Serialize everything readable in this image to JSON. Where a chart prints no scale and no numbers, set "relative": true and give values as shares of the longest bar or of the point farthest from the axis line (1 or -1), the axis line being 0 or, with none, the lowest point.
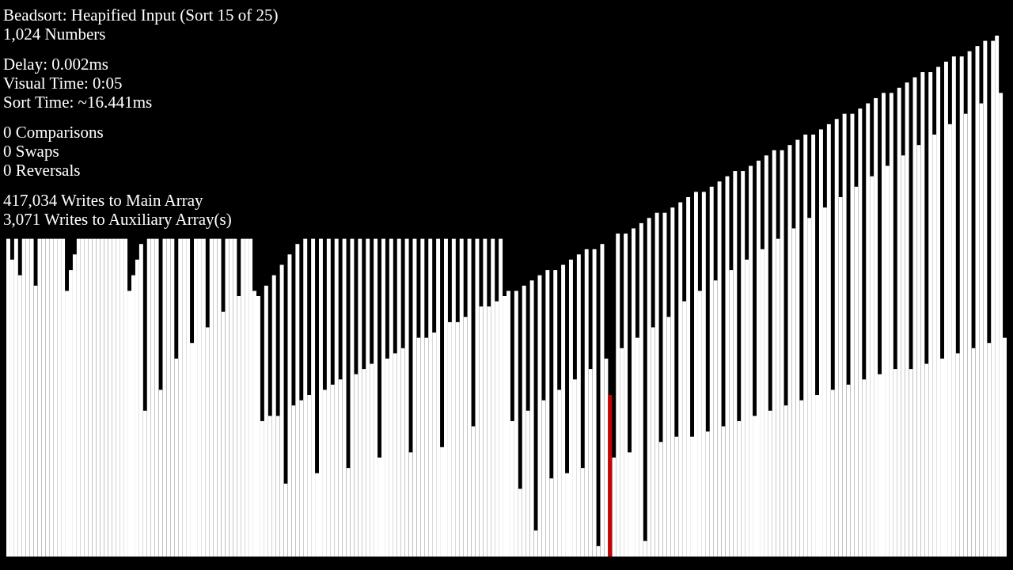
{
  "chart_data": {
    "type": "bar",
    "relative": true,
    "stacked": true,
    "title": "Beadsort: Heapified Input (Sort 15 of 25)",
    "subtitle": "1,024 Numbers",
    "annotations": [
      "Delay: 0.002ms",
      "Visual Time: 0:05",
      "Sort Time: ~16.441ms",
      "0 Comparisons",
      "0 Swaps",
      "0 Reversals",
      "417,034 Writes to Main Array",
      "3,071 Writes to Auxiliary Array(s)"
    ],
    "categories": [
      null,
      null,
      null,
      null,
      null,
      null,
      null,
      null,
      null,
      null,
      null,
      null,
      null,
      null,
      null,
      null,
      null,
      null,
      null,
      null,
      null,
      null,
      null,
      null,
      null,
      null,
      null,
      null,
      null,
      null,
      null,
      null,
      null,
      null,
      null,
      null,
      null,
      null,
      null,
      null,
      null,
      null,
      null,
      null,
      null,
      null,
      null,
      null,
      null,
      null,
      null,
      null,
      null,
      null,
      null,
      null,
      null,
      null,
      null,
      null,
      null,
      null,
      null,
      null,
      null,
      null,
      null,
      null,
      null,
      null,
      null,
      null,
      null,
      null,
      null,
      null,
      null,
      null,
      null,
      null,
      null,
      null,
      null,
      null,
      null,
      null,
      null,
      null,
      null,
      null,
      null,
      null,
      null,
      null,
      null,
      null,
      null,
      null,
      null,
      null,
      null,
      null,
      null,
      null,
      null,
      null,
      null,
      null,
      null,
      null,
      null,
      null,
      null,
      null,
      null,
      null,
      null,
      null,
      null,
      null,
      null,
      null,
      null,
      null,
      null,
      null,
      null,
      null,
      null,
      null,
      null,
      null,
      null,
      null,
      null,
      null,
      null,
      null,
      null,
      null,
      null,
      null,
      null,
      null,
      null,
      null,
      null,
      null,
      null,
      null,
      null,
      null,
      null,
      null,
      null,
      null,
      null,
      null,
      null,
      null,
      null,
      null,
      null,
      null,
      null,
      null,
      null,
      null,
      null,
      null,
      null,
      null,
      null,
      null,
      null,
      null,
      null,
      null,
      null,
      null,
      null,
      null,
      null,
      null,
      null,
      null,
      null,
      null,
      null,
      null,
      null,
      null,
      null,
      null,
      null,
      null,
      null,
      null,
      null,
      null,
      null,
      null,
      null,
      null,
      null,
      null,
      null,
      null,
      null,
      null,
      null,
      null,
      null,
      null,
      null,
      null,
      null,
      null,
      null,
      null,
      null,
      null,
      null,
      null,
      null,
      null,
      null,
      null,
      null,
      null,
      null,
      null,
      null,
      null,
      null,
      null,
      null,
      null,
      null,
      null,
      null,
      null,
      null,
      null,
      null,
      null,
      null,
      null,
      null,
      null,
      null,
      null,
      null,
      null,
      null,
      null
    ],
    "series": [
      {
        "color": "#ffffff",
        "values": [
          0.61,
          0.57,
          0.61,
          0.54,
          0.61,
          0.61,
          0.61,
          0.52,
          0.61,
          0.61,
          0.61,
          0.61,
          0.61,
          0.61,
          0.61,
          0.51,
          0.55,
          0.58,
          0.61,
          0.61,
          0.61,
          0.61,
          0.61,
          0.61,
          0.61,
          0.61,
          0.61,
          0.61,
          0.61,
          0.61,
          0.61,
          0.51,
          0.54,
          0.57,
          0.6,
          0.28,
          0.61,
          0.61,
          0.61,
          0.32,
          0.61,
          0.61,
          0.61,
          0.38,
          0.61,
          0.61,
          0.61,
          0.41,
          0.61,
          0.61,
          0.61,
          0.44,
          0.61,
          0.61,
          0.61,
          0.47,
          0.61,
          0.61,
          0.61,
          0.5,
          0.61,
          0.61,
          0.61,
          0.51,
          0.5,
          0.26,
          0.52,
          0.27,
          0.54,
          0.27,
          0.56,
          0.14,
          0.58,
          0.29,
          0.6,
          0.3,
          0.61,
          0.31,
          0.61,
          0.16,
          0.61,
          0.32,
          0.61,
          0.33,
          0.61,
          0.34,
          0.61,
          0.17,
          0.61,
          0.35,
          0.61,
          0.36,
          0.61,
          0.37,
          0.61,
          0.19,
          0.61,
          0.38,
          0.61,
          0.39,
          0.61,
          0.4,
          0.61,
          0.2,
          0.61,
          0.42,
          0.61,
          0.42,
          0.61,
          0.43,
          0.61,
          0.21,
          0.61,
          0.45,
          0.61,
          0.45,
          0.61,
          0.46,
          0.61,
          0.25,
          0.61,
          0.48,
          0.61,
          0.48,
          0.61,
          0.49,
          0.61,
          0.5,
          0.51,
          0.26,
          0.51,
          0.13,
          0.52,
          0.28,
          0.53,
          0.05,
          0.54,
          0.3,
          0.55,
          0.15,
          0.55,
          0.32,
          0.56,
          0.16,
          0.57,
          0.34,
          0.58,
          0.17,
          0.59,
          0.36,
          0.59,
          0.02,
          0.6,
          0.38,
          null,
          0.19,
          0.62,
          0.4,
          0.62,
          0.2,
          0.63,
          0.42,
          0.64,
          0.03,
          0.65,
          0.44,
          0.66,
          0.22,
          0.66,
          0.46,
          0.67,
          0.23,
          0.68,
          0.49,
          0.69,
          0.23,
          0.7,
          0.51,
          0.7,
          0.24,
          0.71,
          0.53,
          0.72,
          0.25,
          0.73,
          0.55,
          0.74,
          0.26,
          0.74,
          0.57,
          0.75,
          0.27,
          0.76,
          0.59,
          0.77,
          0.28,
          0.78,
          0.61,
          0.78,
          0.29,
          0.79,
          0.63,
          0.8,
          0.3,
          0.81,
          0.65,
          0.81,
          0.31,
          0.82,
          0.67,
          0.83,
          0.32,
          0.84,
          0.69,
          0.85,
          0.33,
          0.85,
          0.71,
          0.86,
          0.34,
          0.87,
          0.73,
          0.88,
          0.35,
          0.89,
          0.75,
          0.89,
          0.36,
          0.9,
          0.77,
          0.91,
          0.36,
          0.92,
          0.79,
          0.93,
          0.37,
          0.93,
          0.81,
          0.94,
          0.38,
          0.95,
          0.83,
          0.96,
          0.39,
          0.96,
          0.85,
          0.97,
          0.4,
          0.98,
          0.87,
          0.99,
          0.41,
          0.99,
          1,
          0.89,
          0.42
        ]
      },
      {
        "color": "#cc0000",
        "values": [
          null,
          null,
          null,
          null,
          null,
          null,
          null,
          null,
          null,
          null,
          null,
          null,
          null,
          null,
          null,
          null,
          null,
          null,
          null,
          null,
          null,
          null,
          null,
          null,
          null,
          null,
          null,
          null,
          null,
          null,
          null,
          null,
          null,
          null,
          null,
          null,
          null,
          null,
          null,
          null,
          null,
          null,
          null,
          null,
          null,
          null,
          null,
          null,
          null,
          null,
          null,
          null,
          null,
          null,
          null,
          null,
          null,
          null,
          null,
          null,
          null,
          null,
          null,
          null,
          null,
          null,
          null,
          null,
          null,
          null,
          null,
          null,
          null,
          null,
          null,
          null,
          null,
          null,
          null,
          null,
          null,
          null,
          null,
          null,
          null,
          null,
          null,
          null,
          null,
          null,
          null,
          null,
          null,
          null,
          null,
          null,
          null,
          null,
          null,
          null,
          null,
          null,
          null,
          null,
          null,
          null,
          null,
          null,
          null,
          null,
          null,
          null,
          null,
          null,
          null,
          null,
          null,
          null,
          null,
          null,
          null,
          null,
          null,
          null,
          null,
          null,
          null,
          null,
          null,
          null,
          null,
          null,
          null,
          null,
          null,
          null,
          null,
          null,
          null,
          null,
          null,
          null,
          null,
          null,
          null,
          null,
          null,
          null,
          null,
          null,
          null,
          null,
          null,
          null,
          0.31,
          null,
          null,
          null,
          null,
          null,
          null,
          null,
          null,
          null,
          null,
          null,
          null,
          null,
          null,
          null,
          null,
          null,
          null,
          null,
          null,
          null,
          null,
          null,
          null,
          null,
          null,
          null,
          null,
          null,
          null,
          null,
          null,
          null,
          null,
          null,
          null,
          null,
          null,
          null,
          null,
          null,
          null,
          null,
          null,
          null,
          null,
          null,
          null,
          null,
          null,
          null,
          null,
          null,
          null,
          null,
          null,
          null,
          null,
          null,
          null,
          null,
          null,
          null,
          null,
          null,
          null,
          null,
          null,
          null,
          null,
          null,
          null,
          null,
          null,
          null,
          null,
          null,
          null,
          null,
          null,
          null,
          null,
          null,
          null,
          null,
          null,
          null,
          null,
          null,
          null,
          null,
          null,
          null,
          null,
          null,
          null,
          null,
          null,
          null,
          null,
          null
        ]
      }
    ]
  }
}
